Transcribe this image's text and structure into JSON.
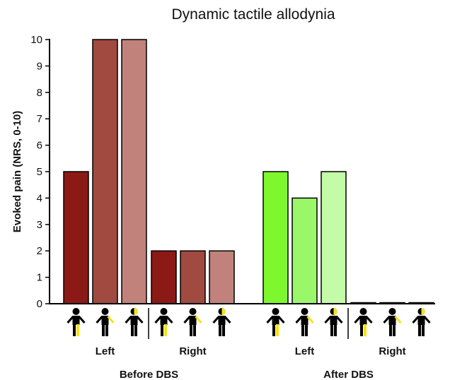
{
  "chart_data": {
    "type": "bar",
    "title": "Dynamic tactile allodynia",
    "ylabel": "Evoked pain (NRS, 0-10)",
    "xlabel": "",
    "ylim": [
      0,
      10
    ],
    "yticks": [
      "0",
      "1",
      "2",
      "3",
      "4",
      "5",
      "6",
      "7",
      "8",
      "9",
      "10"
    ],
    "grid": false,
    "groups": [
      {
        "label": "Before DBS",
        "sides": [
          {
            "label": "Left",
            "bars": [
              {
                "value": 5,
                "color": "#8b1a16",
                "icon": "body-leg-highlight-icon"
              },
              {
                "value": 10,
                "color": "#a04a40",
                "icon": "body-arm-highlight-icon"
              },
              {
                "value": 10,
                "color": "#c0827a",
                "icon": "body-face-highlight-icon"
              }
            ]
          },
          {
            "label": "Right",
            "bars": [
              {
                "value": 2,
                "color": "#8b1a16",
                "icon": "body-leg-highlight-icon"
              },
              {
                "value": 2,
                "color": "#a04a40",
                "icon": "body-arm-highlight-icon"
              },
              {
                "value": 2,
                "color": "#c0827a",
                "icon": "body-face-highlight-icon"
              }
            ]
          }
        ]
      },
      {
        "label": "After DBS",
        "sides": [
          {
            "label": "Left",
            "bars": [
              {
                "value": 5,
                "color": "#7ef82c",
                "icon": "body-leg-highlight-icon"
              },
              {
                "value": 4,
                "color": "#9af76a",
                "icon": "body-arm-highlight-icon"
              },
              {
                "value": 5,
                "color": "#c3fba6",
                "icon": "body-face-highlight-icon"
              }
            ]
          },
          {
            "label": "Right",
            "bars": [
              {
                "value": 0,
                "color": "#000000",
                "icon": "body-leg-highlight-icon"
              },
              {
                "value": 0,
                "color": "#000000",
                "icon": "body-arm-highlight-icon"
              },
              {
                "value": 0,
                "color": "#000000",
                "icon": "body-face-highlight-icon"
              }
            ]
          }
        ]
      }
    ]
  }
}
